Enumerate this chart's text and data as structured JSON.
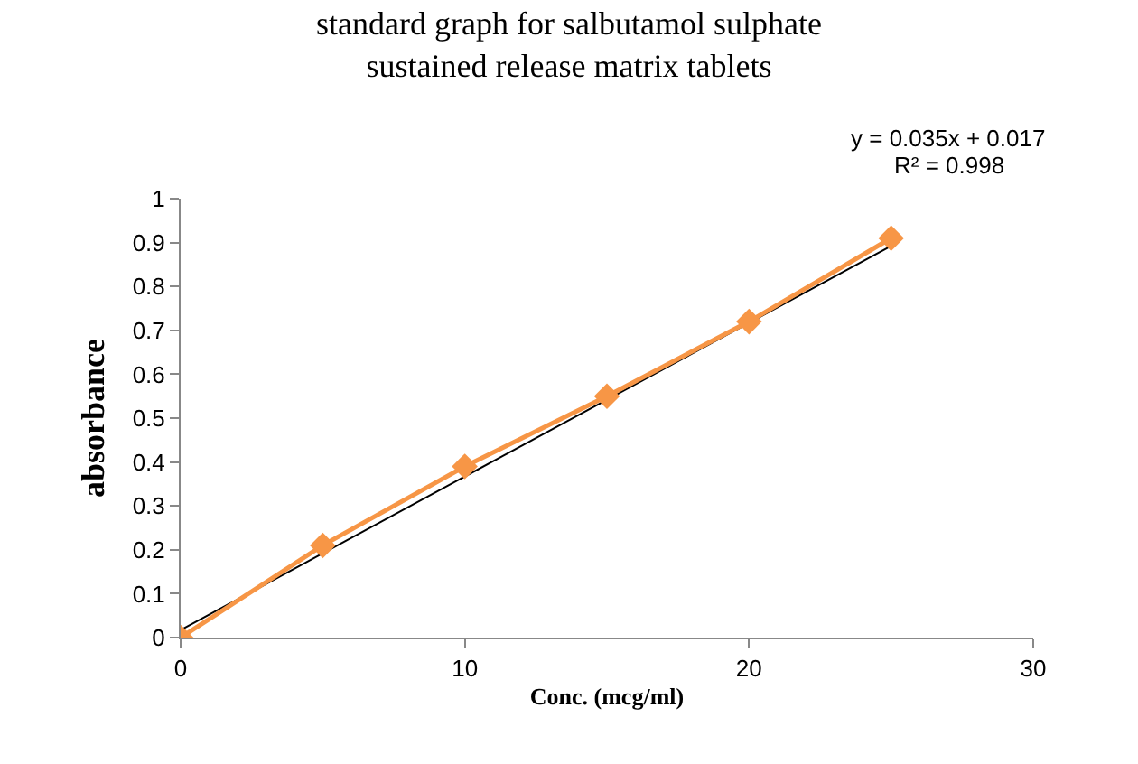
{
  "chart_data": {
    "type": "line",
    "title": "standard graph for salbutamol sulphate\nsustained release matrix tablets",
    "xlabel": "Conc. (mcg/ml)",
    "ylabel": "absorbance",
    "x": [
      0,
      5,
      10,
      15,
      20,
      25
    ],
    "series": [
      {
        "color": "#f79646",
        "values": [
          0,
          0.21,
          0.39,
          0.55,
          0.72,
          0.91
        ]
      },
      {
        "type": "line",
        "color": "#000000",
        "marker": "none",
        "x": [
          0,
          25
        ],
        "values": [
          0.017,
          0.892
        ]
      }
    ],
    "marker": "diamond",
    "line_style": "solid",
    "xlim": [
      0,
      30
    ],
    "xticks": [
      0,
      10,
      20,
      30
    ],
    "ylim": [
      0,
      1
    ],
    "yticks": [
      0,
      0.1,
      0.2,
      0.3,
      0.4,
      0.5,
      0.6,
      0.7,
      0.8,
      0.9,
      1
    ],
    "grid": false,
    "annotations": [
      "y = 0.035x + 0.017",
      "R² = 0.998"
    ]
  }
}
